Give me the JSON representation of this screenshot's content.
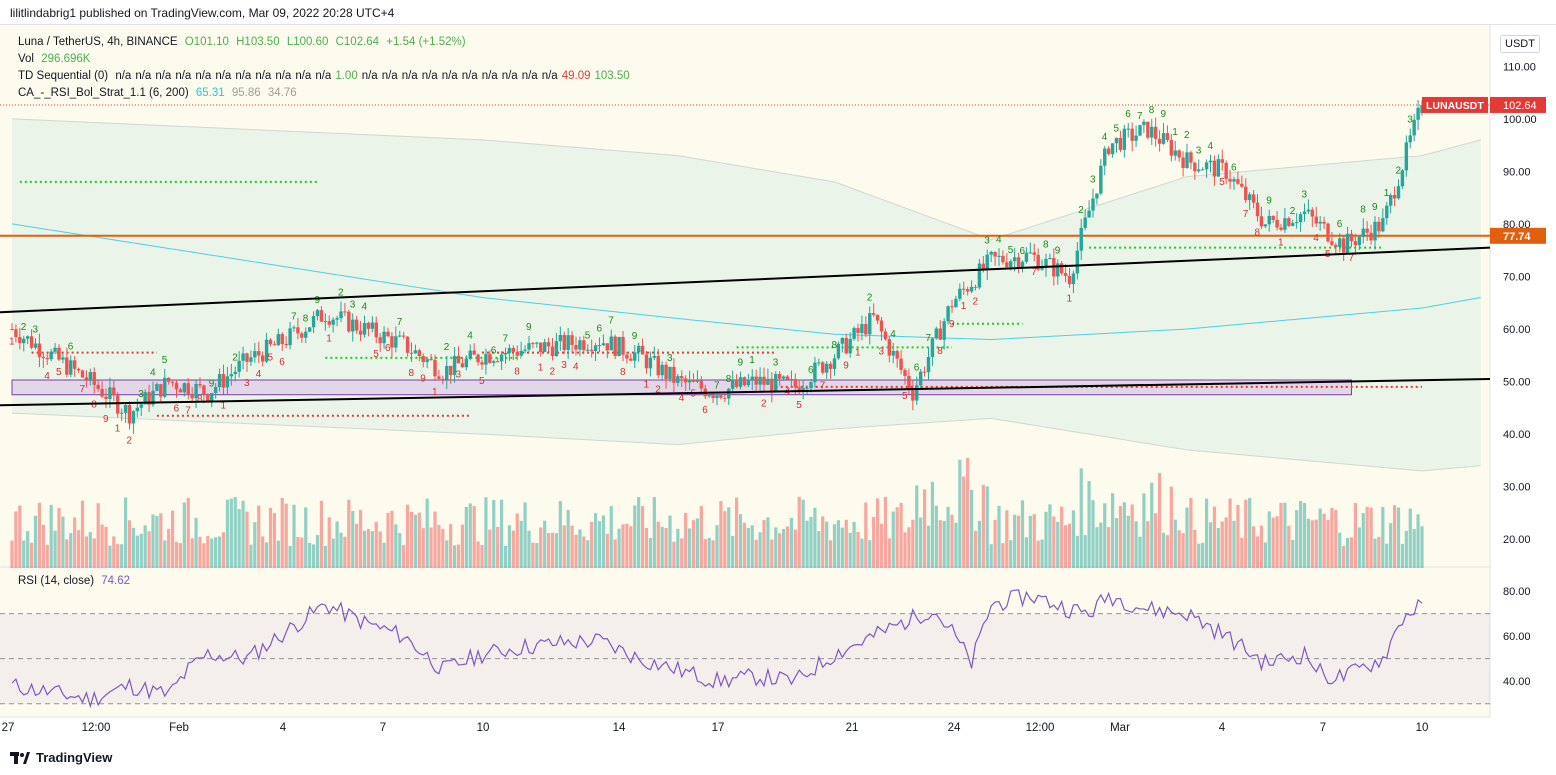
{
  "publisher_line": "lilitlindabrig1 published on TradingView.com, Mar 09, 2022 20:28 UTC+4",
  "header": {
    "symbol": "Luna / TetherUS, 4h, BINANCE",
    "ohlc": [
      "O101.10",
      "H103.50",
      "L100.60",
      "C102.64",
      "+1.54 (+1.52%)"
    ],
    "vol_label": "Vol",
    "vol_value": "296.696K",
    "td_label": "TD Sequential (0)",
    "td_values": [
      "n/a",
      "n/a",
      "n/a",
      "n/a",
      "n/a",
      "n/a",
      "n/a",
      "n/a",
      "n/a",
      "n/a",
      "n/a",
      "1.00",
      "n/a",
      "n/a",
      "n/a",
      "n/a",
      "n/a",
      "n/a",
      "n/a",
      "n/a",
      "n/a",
      "n/a",
      "49.09",
      "103.50"
    ],
    "ca_label": "CA_-_RSI_Bol_Strat_1.1 (6, 200)",
    "ca_values": [
      "65.31",
      "95.86",
      "34.76"
    ]
  },
  "currency_button": "USDT",
  "price_labels": {
    "symbol_tag": "LUNAUSDT",
    "last_price": "102.64",
    "hline_price": "77.74"
  },
  "rsi": {
    "label": "RSI (14, close)",
    "value": "74.62"
  },
  "footer": {
    "brand": "TradingView"
  },
  "colors": {
    "up": "#26a69a",
    "down": "#ef5350",
    "td_up": "#1b8a1b",
    "td_down": "#d32f2f",
    "band_fill": "#e8f3e8",
    "hline": "#e06010",
    "rsi_line": "#7e57c2",
    "zone": "#d8bfe8"
  },
  "chart_data": [
    {
      "type": "candlestick",
      "title": "Luna / TetherUS, 4h, BINANCE",
      "x_ticks": [
        "27",
        "12:00",
        "Feb",
        "4",
        "7",
        "10",
        "14",
        "17",
        "21",
        "24",
        "12:00",
        "Mar",
        "4",
        "7",
        "10"
      ],
      "y_ticks": [
        20,
        30,
        40,
        50,
        60,
        70,
        80,
        90,
        100,
        110
      ],
      "ylim": [
        17,
        115
      ],
      "close_series_anchors": [
        [
          0,
          60
        ],
        [
          10,
          55
        ],
        [
          20,
          50
        ],
        [
          30,
          44
        ],
        [
          40,
          50
        ],
        [
          50,
          48
        ],
        [
          60,
          54
        ],
        [
          70,
          58
        ],
        [
          80,
          63
        ],
        [
          90,
          60
        ],
        [
          100,
          57
        ],
        [
          110,
          52
        ],
        [
          120,
          55
        ],
        [
          130,
          56
        ],
        [
          140,
          57
        ],
        [
          150,
          58
        ],
        [
          160,
          55
        ],
        [
          170,
          50
        ],
        [
          180,
          48
        ],
        [
          190,
          50
        ],
        [
          200,
          49
        ],
        [
          210,
          55
        ],
        [
          220,
          62
        ],
        [
          230,
          48
        ],
        [
          240,
          65
        ],
        [
          250,
          73
        ],
        [
          260,
          74
        ],
        [
          270,
          70
        ],
        [
          280,
          95
        ],
        [
          290,
          98
        ],
        [
          300,
          92
        ],
        [
          310,
          90
        ],
        [
          320,
          80
        ],
        [
          330,
          82
        ],
        [
          340,
          76
        ],
        [
          350,
          80
        ],
        [
          360,
          102.64
        ]
      ],
      "bands": {
        "upper_anchors": [
          [
            0,
            100
          ],
          [
            60,
            98
          ],
          [
            120,
            96
          ],
          [
            170,
            93
          ],
          [
            210,
            88
          ],
          [
            250,
            77
          ],
          [
            300,
            89
          ],
          [
            360,
            93
          ],
          [
            375,
            96
          ]
        ],
        "lower_anchors": [
          [
            0,
            44
          ],
          [
            60,
            42
          ],
          [
            120,
            40
          ],
          [
            170,
            38
          ],
          [
            210,
            41
          ],
          [
            250,
            43
          ],
          [
            300,
            37
          ],
          [
            360,
            33
          ],
          [
            375,
            34
          ]
        ],
        "mid_anchors": [
          [
            0,
            80
          ],
          [
            60,
            73
          ],
          [
            120,
            66
          ],
          [
            170,
            62
          ],
          [
            210,
            59
          ],
          [
            250,
            58
          ],
          [
            300,
            60
          ],
          [
            360,
            64
          ],
          [
            375,
            66
          ]
        ]
      },
      "horizontal_line": 77.74,
      "trendlines": [
        {
          "from": [
            0,
            63.2
          ],
          "to": [
            375,
            75.5
          ]
        },
        {
          "from": [
            0,
            45.5
          ],
          "to": [
            375,
            50.5
          ]
        }
      ],
      "zone": {
        "from_x": 0,
        "to_x": 342,
        "ymin": 47.5,
        "ymax": 50.3
      },
      "dotted_levels": [
        {
          "y": 88,
          "x0": 2,
          "x1": 78,
          "color": "green"
        },
        {
          "y": 55.5,
          "x0": 5,
          "x1": 37,
          "color": "red"
        },
        {
          "y": 43.5,
          "x0": 37,
          "x1": 117,
          "color": "red"
        },
        {
          "y": 54.5,
          "x0": 80,
          "x1": 130,
          "color": "green"
        },
        {
          "y": 55.5,
          "x0": 120,
          "x1": 195,
          "color": "red"
        },
        {
          "y": 56.5,
          "x0": 185,
          "x1": 240,
          "color": "green"
        },
        {
          "y": 49,
          "x0": 195,
          "x1": 360,
          "color": "red"
        },
        {
          "y": 61,
          "x0": 240,
          "x1": 258,
          "color": "green"
        },
        {
          "y": 75.5,
          "x0": 275,
          "x1": 350,
          "color": "green"
        }
      ]
    },
    {
      "type": "bar",
      "title": "Vol",
      "series": [
        {
          "name": "Vol",
          "values_description": "per-candle volume bars, colored by candle direction"
        }
      ]
    },
    {
      "type": "line",
      "title": "RSI (14, close)",
      "y_ticks": [
        40.0,
        60.0,
        80.0
      ],
      "ylim": [
        25,
        88
      ],
      "guides": [
        30,
        50,
        70
      ],
      "rsi_anchors": [
        [
          0,
          38
        ],
        [
          10,
          35
        ],
        [
          20,
          32
        ],
        [
          30,
          38
        ],
        [
          40,
          34
        ],
        [
          45,
          45
        ],
        [
          50,
          52
        ],
        [
          60,
          50
        ],
        [
          70,
          62
        ],
        [
          80,
          74
        ],
        [
          90,
          66
        ],
        [
          100,
          60
        ],
        [
          110,
          45
        ],
        [
          120,
          52
        ],
        [
          130,
          55
        ],
        [
          140,
          57
        ],
        [
          150,
          58
        ],
        [
          160,
          50
        ],
        [
          170,
          45
        ],
        [
          180,
          40
        ],
        [
          190,
          42
        ],
        [
          200,
          40
        ],
        [
          210,
          52
        ],
        [
          220,
          60
        ],
        [
          230,
          68
        ],
        [
          235,
          72
        ],
        [
          240,
          62
        ],
        [
          245,
          48
        ],
        [
          250,
          74
        ],
        [
          260,
          78
        ],
        [
          270,
          72
        ],
        [
          275,
          70
        ],
        [
          280,
          78
        ],
        [
          290,
          72
        ],
        [
          300,
          70
        ],
        [
          310,
          60
        ],
        [
          320,
          48
        ],
        [
          330,
          52
        ],
        [
          335,
          42
        ],
        [
          340,
          42
        ],
        [
          350,
          50
        ],
        [
          355,
          68
        ],
        [
          360,
          74.62
        ]
      ]
    }
  ]
}
